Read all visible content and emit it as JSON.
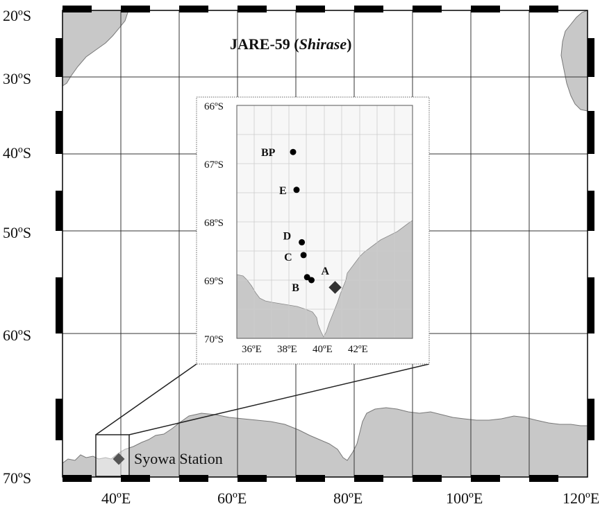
{
  "title": {
    "prefix": "JARE-59 (",
    "italic": "Shirase",
    "suffix": ")"
  },
  "main_map": {
    "lat_labels": [
      "20ºS",
      "30ºS",
      "40ºS",
      "50ºS",
      "60ºS",
      "70ºS"
    ],
    "lon_labels": [
      "40ºE",
      "60ºE",
      "80ºE",
      "100ºE",
      "120ºE"
    ],
    "land_color": "#c8c8c8",
    "station": {
      "name": "Syowa Station",
      "lon": 39.6,
      "lat": -69.0,
      "marker": "diamond",
      "color": "#555555"
    }
  },
  "inset_map": {
    "lat_labels": [
      "66ºS",
      "67ºS",
      "68ºS",
      "69ºS",
      "70ºS"
    ],
    "lon_labels": [
      "36ºE",
      "38ºE",
      "40ºE",
      "42ºE"
    ],
    "points": [
      {
        "label": "BP",
        "lon": 38.0,
        "lat": -66.8
      },
      {
        "label": "E",
        "lon": 38.2,
        "lat": -67.45
      },
      {
        "label": "D",
        "lon": 38.5,
        "lat": -68.35
      },
      {
        "label": "C",
        "lon": 38.6,
        "lat": -68.57
      },
      {
        "label": "B",
        "lon": 38.8,
        "lat": -68.95
      },
      {
        "label": "A",
        "lon": 39.05,
        "lat": -69.0
      }
    ],
    "station_marker": "diamond"
  }
}
